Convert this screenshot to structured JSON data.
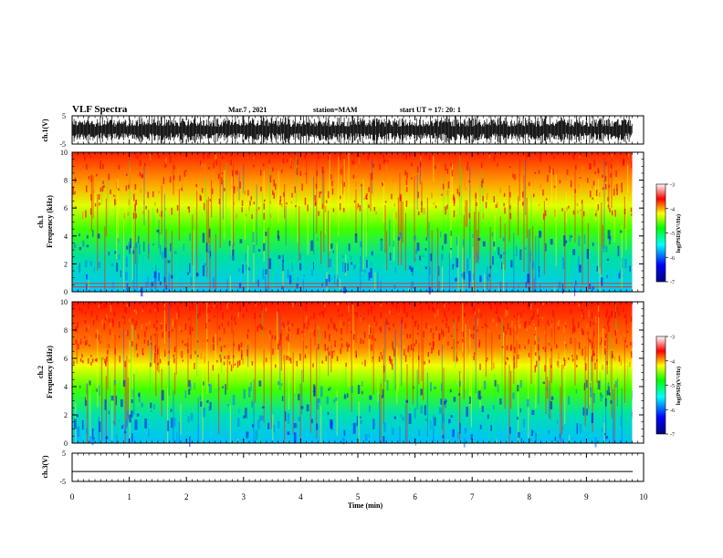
{
  "header": {
    "title": "VLF Spectra",
    "date": "Mar.7 , 2021",
    "station": "station=MAM",
    "start": "start UT =  17: 20: 1"
  },
  "colors": {
    "colormap": [
      "#000080",
      "#0000ff",
      "#00ffff",
      "#00ff00",
      "#ffff00",
      "#ff0000",
      "#ffffff"
    ],
    "axis": "#000000",
    "background": "#ffffff"
  },
  "chart_data": [
    {
      "type": "line",
      "panel": "ch1-waveform",
      "ylabel": "ch.1(V)",
      "ylim": [
        -5,
        5
      ],
      "yticks": [
        "5",
        "-5"
      ],
      "xlim": [
        0,
        10
      ],
      "description_values": {
        "amplitude_range_V": [
          -5,
          5
        ]
      }
    },
    {
      "type": "heatmap",
      "panel": "ch1-spectrogram",
      "ylabel": "ch.1",
      "ylabel2": "Frequency (kHz)",
      "ylim": [
        0,
        10
      ],
      "yticks": [
        "0",
        "2",
        "4",
        "6",
        "8",
        "10"
      ],
      "xlim": [
        0,
        10
      ],
      "data_end_min": 9.8,
      "colorbar": {
        "label": "log(PSD)(V²/Hz)",
        "range": [
          -7,
          -3
        ],
        "ticks": [
          "-3",
          "-4",
          "-5",
          "-6",
          "-7"
        ]
      }
    },
    {
      "type": "heatmap",
      "panel": "ch2-spectrogram",
      "ylabel": "ch.2",
      "ylabel2": "Frequency (kHz)",
      "ylim": [
        0,
        10
      ],
      "yticks": [
        "0",
        "2",
        "4",
        "6",
        "8",
        "10"
      ],
      "xlim": [
        0,
        10
      ],
      "data_end_min": 9.8,
      "colorbar": {
        "label": "log(PSD)(V²/Hz)",
        "range": [
          -7,
          -3
        ],
        "ticks": [
          "-3",
          "-4",
          "-5",
          "-6",
          "-7"
        ]
      }
    },
    {
      "type": "line",
      "panel": "ch3-waveform",
      "ylabel": "ch.3(V)",
      "ylim": [
        -5,
        5
      ],
      "yticks": [
        "5",
        "-5"
      ],
      "xlim": [
        0,
        10
      ],
      "values": {
        "level_V": -1.5
      }
    }
  ],
  "xaxis": {
    "label": "Time (min)",
    "ticks": [
      "0",
      "1",
      "2",
      "3",
      "4",
      "5",
      "6",
      "7",
      "8",
      "9",
      "10"
    ]
  }
}
